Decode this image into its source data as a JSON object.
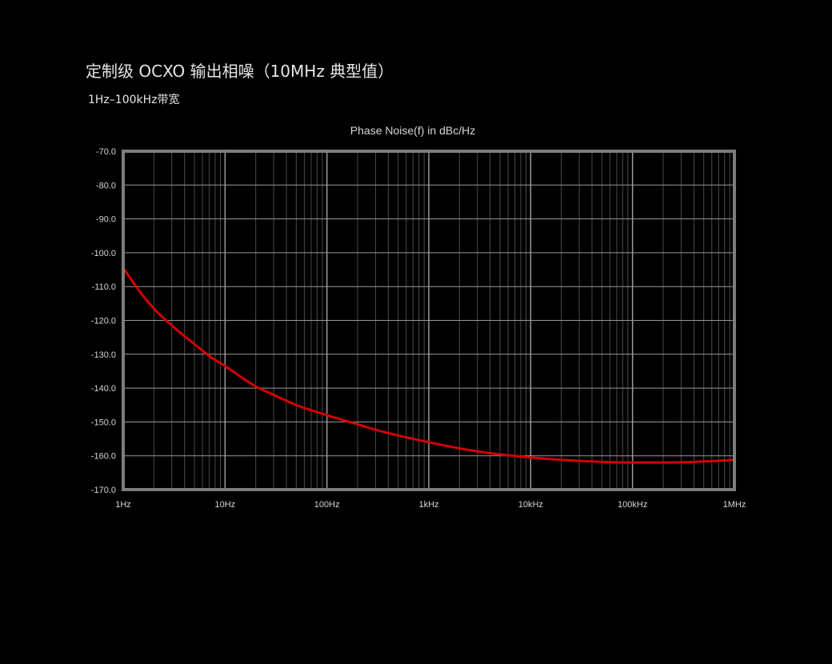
{
  "header": {
    "title": "定制级 OCXO 输出相噪（10MHz 典型值）",
    "subtitle": "1Hz–100kHz带宽"
  },
  "chart_data": {
    "type": "line",
    "title": "Phase Noise(f) in dBc/Hz",
    "xlabel": "",
    "ylabel": "",
    "x_scale": "log",
    "xlim": [
      1,
      1000000
    ],
    "ylim": [
      -170,
      -70
    ],
    "x_ticks": [
      1,
      10,
      100,
      1000,
      10000,
      100000,
      1000000
    ],
    "x_tick_labels": [
      "1Hz",
      "10Hz",
      "100Hz",
      "1kHz",
      "10kHz",
      "100kHz",
      "1MHz"
    ],
    "y_ticks": [
      -70,
      -80,
      -90,
      -100,
      -110,
      -120,
      -130,
      -140,
      -150,
      -160,
      -170
    ],
    "y_tick_labels": [
      "-70.0",
      "-80.0",
      "-90.0",
      "-100.0",
      "-110.0",
      "-120.0",
      "-130.0",
      "-140.0",
      "-150.0",
      "-160.0",
      "-170.0"
    ],
    "grid": true,
    "series": [
      {
        "color": "#d40000",
        "x": [
          1,
          1.5,
          2,
          3,
          5,
          7,
          10,
          20,
          30,
          50,
          100,
          200,
          300,
          500,
          1000,
          2000,
          3000,
          5000,
          10000,
          20000,
          50000,
          100000,
          200000,
          500000,
          1000000
        ],
        "y": [
          -104.5,
          -112,
          -116.5,
          -121.5,
          -127,
          -130.5,
          -133.5,
          -139.5,
          -142,
          -145,
          -148,
          -150.7,
          -152.3,
          -154,
          -156,
          -157.8,
          -158.7,
          -159.6,
          -160.5,
          -161.2,
          -161.8,
          -162.0,
          -162.0,
          -161.7,
          -161.2
        ]
      }
    ]
  },
  "colors": {
    "background": "#000000",
    "plot_background": "#000000",
    "major_grid": "#9a9a9a",
    "minor_grid": "#4a4a4a",
    "frame": "#7d7d7d",
    "curve": "#d40000"
  }
}
